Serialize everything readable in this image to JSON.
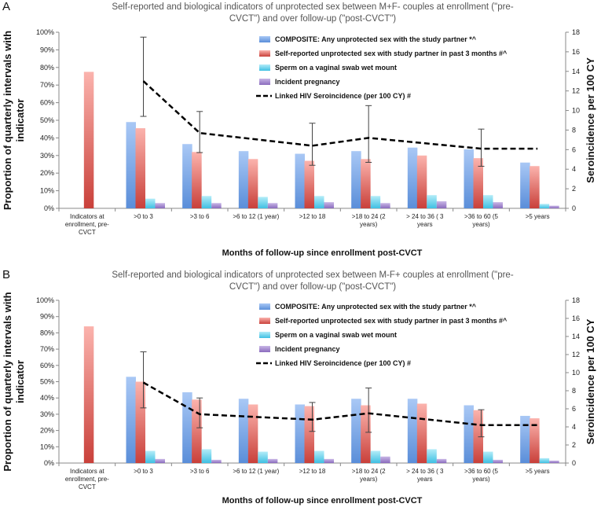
{
  "chart_data": [
    {
      "type": "bar",
      "panel_label": "A",
      "title_lines": [
        "Self-reported and biological indicators of unprotected sex between M+F- couples at enrollment (\"pre-",
        "CVCT\") and over follow-up (\"post-CVCT\")"
      ],
      "ylabel_lines": [
        "Proportion of quarterly intervals with",
        "indicator"
      ],
      "y2label": "Seroincidence per 100 CY",
      "xlabel": "Months of follow-up since enrollment post-CVCT",
      "ylim": [
        0,
        100
      ],
      "y2lim": [
        0,
        18
      ],
      "yticks": [
        "0%",
        "10%",
        "20%",
        "30%",
        "40%",
        "50%",
        "60%",
        "70%",
        "80%",
        "90%",
        "100%"
      ],
      "y2ticks": [
        "0",
        "2",
        "4",
        "6",
        "8",
        "10",
        "12",
        "14",
        "16",
        "18"
      ],
      "categories": [
        [
          "Indicators at",
          "enrollment, pre-",
          "CVCT"
        ],
        [
          ">0 to 3"
        ],
        [
          ">3 to 6"
        ],
        [
          ">6 to 12 (1 year)"
        ],
        [
          ">12 to 18"
        ],
        [
          ">18 to 24 (2",
          "years)"
        ],
        [
          "> 24 to 36 ( 3",
          "years"
        ],
        [
          ">36 to 60 (5",
          "years)"
        ],
        [
          ">5 years"
        ]
      ],
      "series": [
        {
          "name": "COMPOSITE: Any unprotected sex with the study partner *^",
          "color": "#5b8ed6",
          "values": [
            null,
            49,
            36.5,
            32.5,
            31,
            32.5,
            34.5,
            33.5,
            26
          ]
        },
        {
          "name": "Self-reported unprotected sex with study partner in past 3 months #^",
          "color": "#d9534f",
          "values": [
            77.5,
            45.5,
            32,
            28,
            27,
            28,
            30,
            28.5,
            24
          ]
        },
        {
          "name": "Sperm on a vaginal swab wet mount",
          "color": "#4cc3e3",
          "values": [
            null,
            5.5,
            7,
            6.5,
            7,
            7,
            7.5,
            7.5,
            2.5
          ]
        },
        {
          "name": "Incident pregnancy",
          "color": "#8b6dbf",
          "values": [
            null,
            3,
            3,
            3,
            3.5,
            3,
            4,
            3.5,
            1.5
          ]
        }
      ],
      "line": {
        "name": "Linked HIV Seroincidence (per 100 CY) #",
        "values": [
          null,
          13,
          7.7,
          null,
          6.4,
          7.2,
          null,
          6.1,
          6.1
        ],
        "error_bars": [
          null,
          [
            9.4,
            17.5
          ],
          [
            5.7,
            9.9
          ],
          null,
          [
            4.4,
            8.7
          ],
          [
            4.7,
            10.5
          ],
          null,
          [
            4.3,
            8.1
          ],
          null
        ]
      }
    },
    {
      "type": "bar",
      "panel_label": "B",
      "title_lines": [
        "Self-reported and biological indicators of unprotected sex between M-F+ couples at enrollment (\"pre-",
        "CVCT\") and over follow-up (\"post-CVCT\")"
      ],
      "ylabel_lines": [
        "Proportion of quarterly intervals with",
        "indicator"
      ],
      "y2label": "Seroincidence per 100 CY",
      "xlabel": "Months of follow-up since enrollment post-CVCT",
      "ylim": [
        0,
        100
      ],
      "y2lim": [
        0,
        18
      ],
      "yticks": [
        "0%",
        "10%",
        "20%",
        "30%",
        "40%",
        "50%",
        "60%",
        "70%",
        "80%",
        "90%",
        "100%"
      ],
      "y2ticks": [
        "0",
        "2",
        "4",
        "6",
        "8",
        "10",
        "12",
        "14",
        "16",
        "18"
      ],
      "categories": [
        [
          "Indicators at",
          "enrollment, pre-",
          "CVCT"
        ],
        [
          ">0 to 3"
        ],
        [
          ">3 to 6"
        ],
        [
          ">6 to 12 (1 year)"
        ],
        [
          ">12 to 18"
        ],
        [
          ">18 to 24 (2",
          "years)"
        ],
        [
          "> 24 to 36 ( 3",
          "years"
        ],
        [
          ">36 to 60 (5",
          "years)"
        ],
        [
          ">5 years"
        ]
      ],
      "series": [
        {
          "name": "COMPOSITE: Any unprotected sex with the study partner *^",
          "color": "#5b8ed6",
          "values": [
            null,
            53,
            43.5,
            39.5,
            36,
            39.5,
            39.5,
            35.5,
            29
          ]
        },
        {
          "name": "Self-reported unprotected sex with study partner in past 3 months #^",
          "color": "#d9534f",
          "values": [
            84,
            50,
            39,
            36,
            35,
            35.5,
            36.5,
            32.5,
            27.5
          ]
        },
        {
          "name": "Sperm on a vaginal swab wet mount",
          "color": "#4cc3e3",
          "values": [
            null,
            7.5,
            8.5,
            7,
            7.5,
            7.5,
            8.5,
            7,
            3
          ]
        },
        {
          "name": "Incident pregnancy",
          "color": "#8b6dbf",
          "values": [
            null,
            2.5,
            2,
            2.5,
            2.5,
            4,
            2.5,
            2,
            1.5
          ]
        }
      ],
      "line": {
        "name": "Linked HIV Seroincidence (per 100 CY) #",
        "values": [
          null,
          8.9,
          5.4,
          null,
          4.8,
          5.5,
          null,
          4.2,
          4.2
        ],
        "error_bars": [
          null,
          [
            6.1,
            12.3
          ],
          [
            3.9,
            7.2
          ],
          null,
          [
            3.5,
            6.7
          ],
          [
            3.4,
            8.3
          ],
          null,
          [
            2.9,
            5.9
          ],
          null
        ]
      }
    }
  ]
}
